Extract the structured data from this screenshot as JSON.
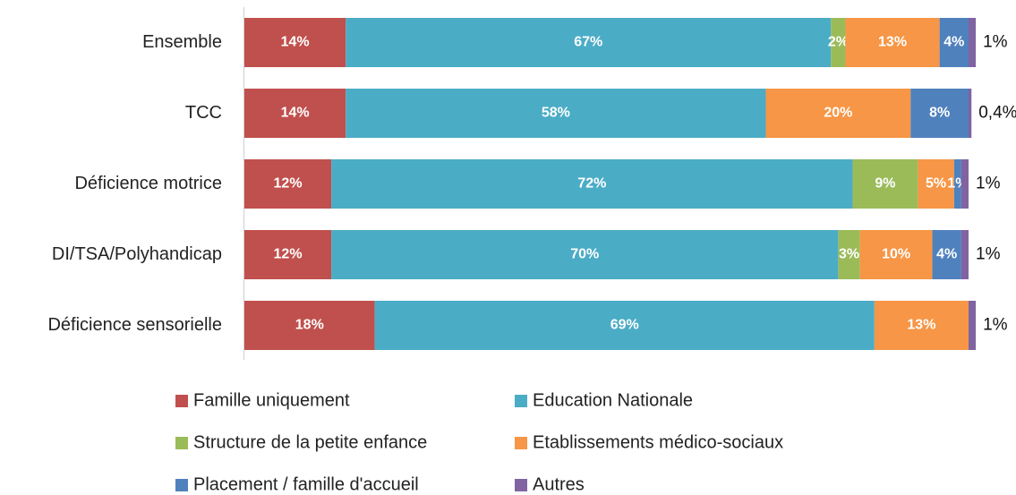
{
  "chart_data": {
    "type": "stacked_bar_horizontal",
    "categories": [
      "Ensemble",
      "TCC",
      "Déficience motrice",
      "DI/TSA/Polyhandicap",
      "Déficience sensorielle"
    ],
    "xlim": [
      0,
      100
    ],
    "series": [
      {
        "name": "Famille uniquement",
        "color": "#c0504d",
        "values": [
          14,
          14,
          12,
          12,
          18
        ],
        "value_labels": [
          "14%",
          "14%",
          "12%",
          "12%",
          "18%"
        ]
      },
      {
        "name": "Education Nationale",
        "color": "#4bacc6",
        "values": [
          67,
          58,
          72,
          70,
          69
        ],
        "value_labels": [
          "67%",
          "58%",
          "72%",
          "70%",
          "69%"
        ]
      },
      {
        "name": "Structure de la petite enfance",
        "color": "#9bbb59",
        "values": [
          2,
          null,
          9,
          3,
          null
        ],
        "value_labels": [
          "2%",
          null,
          "9%",
          "3%",
          null
        ]
      },
      {
        "name": "Etablissements médico-sociaux",
        "color": "#f79646",
        "values": [
          13,
          20,
          5,
          10,
          13
        ],
        "value_labels": [
          "13%",
          "20%",
          "5%",
          "10%",
          "13%"
        ]
      },
      {
        "name": "Placement / famille d'accueil",
        "color": "#4f81bd",
        "values": [
          4,
          8,
          1,
          4,
          null
        ],
        "value_labels": [
          "4%",
          "8%",
          "1%",
          "4%",
          null
        ]
      },
      {
        "name": "Autres",
        "color": "#8064a2",
        "values": [
          1,
          0.4,
          1,
          1,
          1
        ],
        "value_labels": [
          "1%",
          "0,4%",
          "1%",
          "1%",
          "1%"
        ]
      }
    ]
  }
}
